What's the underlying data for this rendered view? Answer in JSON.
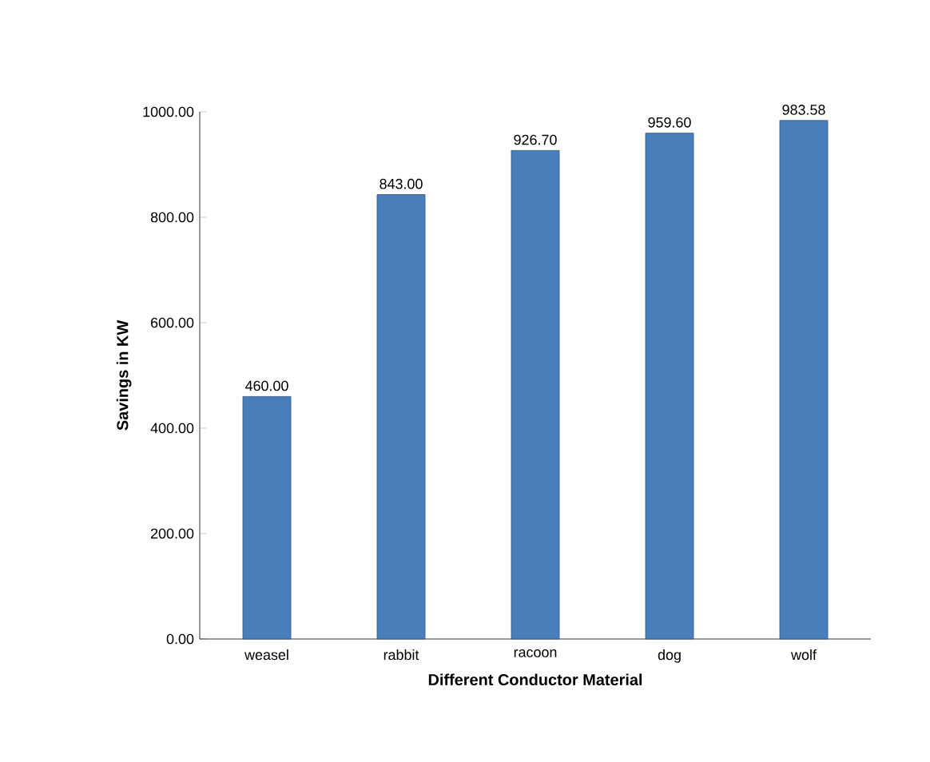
{
  "chart_data": {
    "type": "bar",
    "xlabel": "Different Conductor Material",
    "ylabel": "Savings in KW",
    "categories": [
      "weasel",
      "rabbit",
      "racoon",
      "dog",
      "wolf"
    ],
    "values": [
      460,
      843,
      926.7,
      959.6,
      983.58
    ],
    "value_labels": [
      "460.00",
      "843.00",
      "926.70",
      "959.60",
      "983.58"
    ],
    "color": "#4a7ebb",
    "ylim": [
      0,
      1000
    ],
    "yticks": [
      {
        "value": 0,
        "label": "0.00"
      },
      {
        "value": 200,
        "label": "200.00"
      },
      {
        "value": 400,
        "label": "400.00"
      },
      {
        "value": 600,
        "label": "600.00"
      },
      {
        "value": 800,
        "label": "800.00"
      },
      {
        "value": 1000,
        "label": "1000.00"
      }
    ]
  }
}
